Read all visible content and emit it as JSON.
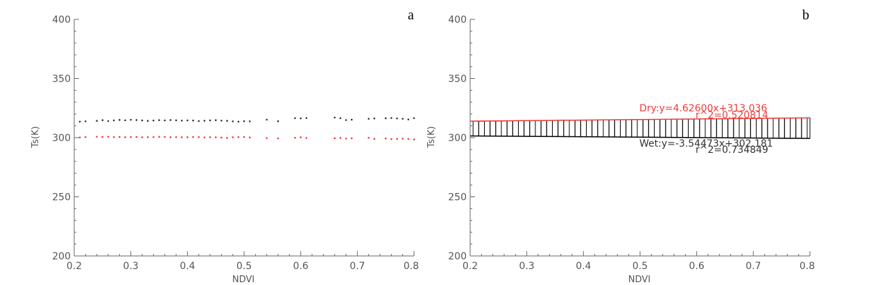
{
  "colors": {
    "dry": "#ef3a3a",
    "wet": "#333333",
    "axis": "#666666"
  },
  "chart_data": [
    {
      "type": "scatter",
      "panel_label": "a",
      "xlabel": "NDVI",
      "ylabel": "Ts(K)",
      "xlim": [
        0.2,
        0.8
      ],
      "ylim": [
        200,
        400
      ],
      "xticks": [
        "0.2",
        "0.3",
        "0.4",
        "0.5",
        "0.6",
        "0.7",
        "0.8"
      ],
      "yticks": [
        "200",
        "250",
        "300",
        "350",
        "400"
      ],
      "series": [
        {
          "color": "#333333",
          "x": [
            0.21,
            0.22,
            0.24,
            0.25,
            0.26,
            0.27,
            0.28,
            0.29,
            0.3,
            0.31,
            0.32,
            0.33,
            0.34,
            0.35,
            0.36,
            0.37,
            0.38,
            0.39,
            0.4,
            0.41,
            0.42,
            0.43,
            0.44,
            0.45,
            0.46,
            0.47,
            0.48,
            0.49,
            0.5,
            0.51,
            0.54,
            0.56,
            0.59,
            0.6,
            0.61,
            0.66,
            0.67,
            0.68,
            0.69,
            0.72,
            0.73,
            0.75,
            0.76,
            0.77,
            0.78,
            0.79,
            0.8
          ],
          "y": [
            313.5,
            313.8,
            314.2,
            314.8,
            314.0,
            314.6,
            315.0,
            314.7,
            315.1,
            314.9,
            314.6,
            314.2,
            314.5,
            314.8,
            314.6,
            314.9,
            314.7,
            314.4,
            314.6,
            314.5,
            314.0,
            314.3,
            314.6,
            314.8,
            314.4,
            314.2,
            313.8,
            313.6,
            313.9,
            313.8,
            315.2,
            313.9,
            316.5,
            316.3,
            316.6,
            317.0,
            316.5,
            314.9,
            315.2,
            316.0,
            316.2,
            316.4,
            316.6,
            316.3,
            316.0,
            315.4,
            316.5
          ]
        },
        {
          "color": "#ef3a3a",
          "x": [
            0.21,
            0.22,
            0.24,
            0.25,
            0.26,
            0.27,
            0.28,
            0.29,
            0.3,
            0.31,
            0.32,
            0.33,
            0.34,
            0.35,
            0.36,
            0.37,
            0.38,
            0.39,
            0.4,
            0.41,
            0.42,
            0.43,
            0.44,
            0.45,
            0.46,
            0.47,
            0.48,
            0.49,
            0.5,
            0.51,
            0.54,
            0.56,
            0.59,
            0.6,
            0.61,
            0.66,
            0.67,
            0.68,
            0.69,
            0.72,
            0.73,
            0.75,
            0.76,
            0.77,
            0.78,
            0.79,
            0.8
          ],
          "y": [
            300.2,
            300.5,
            300.8,
            300.6,
            300.7,
            300.5,
            300.6,
            300.4,
            300.5,
            300.6,
            300.3,
            300.4,
            300.5,
            300.7,
            300.6,
            300.4,
            300.5,
            300.3,
            300.4,
            300.6,
            300.5,
            300.2,
            300.4,
            300.3,
            300.1,
            299.8,
            300.3,
            300.5,
            300.6,
            300.2,
            299.6,
            299.4,
            299.9,
            300.3,
            299.7,
            299.5,
            299.8,
            299.2,
            299.5,
            299.9,
            299.0,
            299.3,
            298.8,
            299.0,
            299.1,
            298.9,
            298.5
          ]
        }
      ]
    },
    {
      "type": "scatter",
      "panel_label": "b",
      "xlabel": "NDVI",
      "ylabel": "Ts(K)",
      "xlim": [
        0.2,
        0.8
      ],
      "ylim": [
        200,
        400
      ],
      "xticks": [
        "0.2",
        "0.3",
        "0.4",
        "0.5",
        "0.6",
        "0.7",
        "0.8"
      ],
      "yticks": [
        "200",
        "250",
        "300",
        "350",
        "400"
      ],
      "dry_line": {
        "slope": 4.626,
        "intercept": 313.036
      },
      "wet_line": {
        "slope": -3.54473,
        "intercept": 302.181
      },
      "annotations": {
        "dry_equation": "Dry:y=4.62600x+313.036",
        "dry_r2": "r^2=0.520814",
        "wet_equation": "Wet:y=-3.54473x+302.181",
        "wet_r2": "r^2=0.734849"
      },
      "boxes": {
        "x": [
          0.21,
          0.22,
          0.23,
          0.24,
          0.25,
          0.26,
          0.27,
          0.28,
          0.29,
          0.3,
          0.31,
          0.32,
          0.33,
          0.34,
          0.35,
          0.36,
          0.37,
          0.38,
          0.39,
          0.4,
          0.41,
          0.42,
          0.43,
          0.44,
          0.45,
          0.46,
          0.47,
          0.48,
          0.49,
          0.5,
          0.51,
          0.52,
          0.53,
          0.54,
          0.55,
          0.56,
          0.57,
          0.58,
          0.59,
          0.6,
          0.61,
          0.62,
          0.63,
          0.64,
          0.65,
          0.66,
          0.67,
          0.68,
          0.69,
          0.7,
          0.71,
          0.72,
          0.73,
          0.74,
          0.75,
          0.76,
          0.77,
          0.78,
          0.79,
          0.8
        ],
        "top": [
          313.9,
          313.9,
          314.0,
          314.0,
          314.0,
          314.2,
          314.3,
          314.3,
          314.4,
          314.4,
          314.4,
          314.5,
          314.5,
          314.6,
          314.6,
          314.7,
          314.7,
          314.8,
          314.8,
          314.8,
          314.9,
          314.9,
          315.0,
          315.0,
          315.1,
          315.1,
          315.2,
          315.2,
          315.3,
          315.3,
          315.4,
          315.4,
          315.5,
          315.5,
          315.5,
          315.6,
          315.6,
          315.7,
          315.7,
          315.8,
          315.8,
          315.9,
          315.9,
          316.0,
          316.0,
          316.1,
          316.1,
          316.2,
          316.2,
          316.3,
          316.3,
          316.4,
          316.4,
          316.5,
          316.5,
          316.6,
          316.6,
          316.7,
          316.7,
          316.7
        ],
        "bottom": [
          301.4,
          301.4,
          301.4,
          301.3,
          301.3,
          301.3,
          301.2,
          301.2,
          301.2,
          301.1,
          301.1,
          301.1,
          301.0,
          301.0,
          301.0,
          300.9,
          300.9,
          300.9,
          300.8,
          300.8,
          300.8,
          300.7,
          300.7,
          300.6,
          300.6,
          300.6,
          300.5,
          300.5,
          300.5,
          300.4,
          300.4,
          300.4,
          300.3,
          300.3,
          300.3,
          300.2,
          300.2,
          300.2,
          300.1,
          300.1,
          300.0,
          300.0,
          300.0,
          299.9,
          299.9,
          299.9,
          299.8,
          299.8,
          299.8,
          299.7,
          299.7,
          299.7,
          299.6,
          299.6,
          299.6,
          299.5,
          299.5,
          299.5,
          299.4,
          299.4
        ]
      }
    }
  ]
}
